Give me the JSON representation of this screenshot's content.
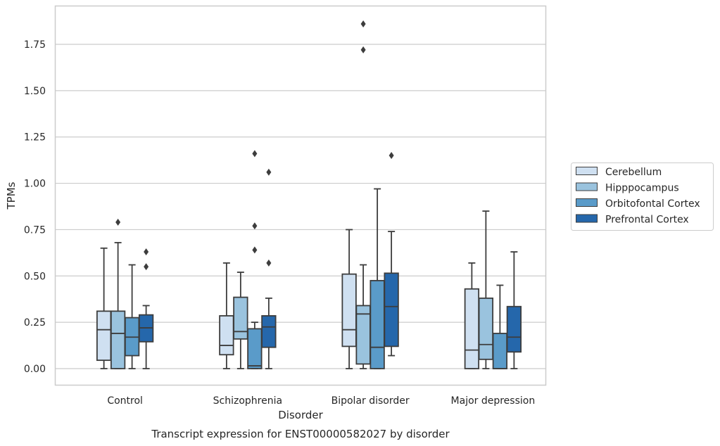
{
  "chart_data": {
    "type": "boxplot",
    "title": "",
    "caption": "Transcript expression for ENST00000582027 by disorder",
    "xlabel": "Disorder",
    "ylabel": "TPMs",
    "categories": [
      "Control",
      "Schizophrenia",
      "Bipolar disorder",
      "Major depression"
    ],
    "ylim": [
      -0.09,
      1.96
    ],
    "yticks": [
      0.0,
      0.25,
      0.5,
      0.75,
      1.0,
      1.25,
      1.5,
      1.75
    ],
    "ytick_labels": [
      "0.00",
      "0.25",
      "0.50",
      "0.75",
      "1.00",
      "1.25",
      "1.50",
      "1.75"
    ],
    "grid": "horizontal",
    "legend_position": "right",
    "series": [
      {
        "name": "Cerebellum",
        "color": "#cfe0f1",
        "boxes": [
          {
            "whislo": 0.0,
            "q1": 0.045,
            "med": 0.21,
            "q3": 0.31,
            "whishi": 0.65,
            "fliers": []
          },
          {
            "whislo": 0.0,
            "q1": 0.075,
            "med": 0.125,
            "q3": 0.285,
            "whishi": 0.57,
            "fliers": []
          },
          {
            "whislo": 0.0,
            "q1": 0.12,
            "med": 0.21,
            "q3": 0.51,
            "whishi": 0.75,
            "fliers": []
          },
          {
            "whislo": 0.0,
            "q1": 0.0,
            "med": 0.1,
            "q3": 0.43,
            "whishi": 0.57,
            "fliers": []
          }
        ]
      },
      {
        "name": "Hipppocampus",
        "color": "#9ac3de",
        "boxes": [
          {
            "whislo": 0.0,
            "q1": 0.0,
            "med": 0.19,
            "q3": 0.31,
            "whishi": 0.68,
            "fliers": [
              0.79
            ]
          },
          {
            "whislo": 0.0,
            "q1": 0.16,
            "med": 0.2,
            "q3": 0.385,
            "whishi": 0.52,
            "fliers": []
          },
          {
            "whislo": 0.0,
            "q1": 0.025,
            "med": 0.295,
            "q3": 0.34,
            "whishi": 0.56,
            "fliers": [
              1.72,
              1.86
            ]
          },
          {
            "whislo": 0.0,
            "q1": 0.05,
            "med": 0.13,
            "q3": 0.38,
            "whishi": 0.85,
            "fliers": []
          }
        ]
      },
      {
        "name": "Orbitofontal Cortex",
        "color": "#5a9bc9",
        "boxes": [
          {
            "whislo": 0.0,
            "q1": 0.07,
            "med": 0.17,
            "q3": 0.275,
            "whishi": 0.56,
            "fliers": []
          },
          {
            "whislo": 0.0,
            "q1": 0.0,
            "med": 0.015,
            "q3": 0.215,
            "whishi": 0.25,
            "fliers": [
              0.64,
              0.77,
              1.16
            ]
          },
          {
            "whislo": 0.0,
            "q1": 0.0,
            "med": 0.115,
            "q3": 0.475,
            "whishi": 0.97,
            "fliers": []
          },
          {
            "whislo": 0.0,
            "q1": 0.0,
            "med": 0.0,
            "q3": 0.19,
            "whishi": 0.45,
            "fliers": []
          }
        ]
      },
      {
        "name": "Prefrontal Cortex",
        "color": "#2567ab",
        "boxes": [
          {
            "whislo": 0.0,
            "q1": 0.145,
            "med": 0.22,
            "q3": 0.29,
            "whishi": 0.34,
            "fliers": [
              0.55,
              0.63
            ]
          },
          {
            "whislo": 0.0,
            "q1": 0.115,
            "med": 0.225,
            "q3": 0.285,
            "whishi": 0.38,
            "fliers": [
              0.57,
              1.06
            ]
          },
          {
            "whislo": 0.07,
            "q1": 0.12,
            "med": 0.335,
            "q3": 0.515,
            "whishi": 0.74,
            "fliers": [
              1.15
            ]
          },
          {
            "whislo": 0.0,
            "q1": 0.09,
            "med": 0.17,
            "q3": 0.335,
            "whishi": 0.63,
            "fliers": []
          }
        ]
      }
    ]
  }
}
